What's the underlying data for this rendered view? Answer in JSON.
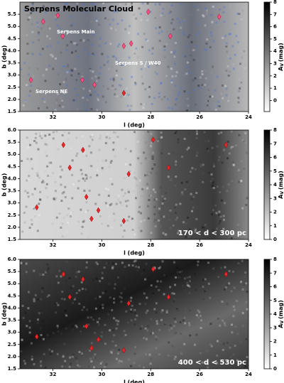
{
  "chart_data": [
    {
      "type": "scatter",
      "title": "Serpens Molecular Cloud",
      "annotations": [
        "Serpens Main",
        "Serpens S / W40",
        "Serpens NE"
      ],
      "x_label": "l (deg)",
      "y_label": "b (deg)",
      "xlim": [
        33.35,
        24
      ],
      "xticks": [
        32,
        30,
        28,
        26,
        24
      ],
      "ylim": [
        1.5,
        6.0
      ],
      "yticks": [
        1.5,
        {
          "value": 2,
          "label": "2.0"
        },
        2.5,
        {
          "value": 3,
          "label": "3.0"
        },
        3.5,
        {
          "value": 4,
          "label": "4.0"
        },
        4.5,
        {
          "value": 5,
          "label": "5.0"
        },
        5.5
      ],
      "colorbar": {
        "symbol": "A",
        "subscript": "V",
        "unit": "(mag)",
        "lim": [
          -0.9,
          8
        ],
        "ticks": [
          0,
          1,
          2,
          3,
          4,
          5,
          6,
          7,
          8
        ]
      },
      "series": [
        {
          "color": "#ff4f8b",
          "x": [
            32.4,
            31.8,
            31.6,
            29.1,
            28.8,
            28.1,
            27.2,
            25.2,
            30.8,
            30.3,
            32.9
          ],
          "values": [
            5.2,
            5.45,
            4.6,
            4.2,
            4.3,
            5.6,
            4.6,
            5.4,
            2.8,
            2.6,
            2.8
          ]
        },
        {
          "color": "#e8262a",
          "x": [
            29.1
          ],
          "values": [
            2.26
          ]
        }
      ]
    },
    {
      "type": "scatter",
      "annotation": "170 < d < 300 pc",
      "x_label": "l (deg)",
      "y_label": "b (deg)",
      "xlim": [
        33.35,
        24
      ],
      "xticks": [
        32,
        30,
        28,
        26,
        24
      ],
      "ylim": [
        1.5,
        6.0
      ],
      "yticks": [
        1.5,
        {
          "value": 2,
          "label": "2.0"
        },
        2.5,
        {
          "value": 3,
          "label": "3.0"
        },
        3.5,
        {
          "value": 4,
          "label": "4.0"
        },
        4.5,
        {
          "value": 5,
          "label": "5.0"
        },
        5.5,
        {
          "value": 6,
          "label": "6.0"
        }
      ],
      "colorbar": {
        "symbol": "A",
        "subscript": "V",
        "unit": "(mag)",
        "lim": [
          0,
          8
        ],
        "ticks": [
          0,
          1,
          2,
          3,
          4,
          5,
          6,
          7,
          8
        ]
      },
      "series": [
        {
          "color": "#e8262a",
          "x": [
            31.57,
            30.77,
            31.31,
            28.9,
            27.9,
            27.27,
            24.92,
            30.63,
            30.14,
            30.42,
            32.66,
            29.1
          ],
          "values": [
            5.39,
            5.18,
            4.45,
            4.19,
            5.6,
            4.45,
            5.39,
            3.25,
            2.7,
            2.35,
            2.82,
            2.26
          ]
        }
      ]
    },
    {
      "type": "scatter",
      "annotation": "400 < d < 530 pc",
      "x_label": "l (deg)",
      "y_label": "b (deg)",
      "xlim": [
        33.35,
        24
      ],
      "xticks": [
        32,
        30,
        28,
        26,
        24
      ],
      "ylim": [
        1.5,
        6.0
      ],
      "yticks": [
        1.5,
        {
          "value": 2,
          "label": "2.0"
        },
        2.5,
        {
          "value": 3,
          "label": "3.0"
        },
        3.5,
        {
          "value": 4,
          "label": "4.0"
        },
        4.5,
        {
          "value": 5,
          "label": "5.0"
        },
        5.5,
        {
          "value": 6,
          "label": "6.0"
        }
      ],
      "colorbar": {
        "symbol": "A",
        "subscript": "V",
        "unit": "(mag)",
        "lim": [
          0,
          8
        ],
        "ticks": [
          0,
          1,
          2,
          3,
          4,
          5,
          6,
          7,
          8
        ]
      },
      "series": [
        {
          "color": "#e8262a",
          "x": [
            31.57,
            30.77,
            31.31,
            28.9,
            27.9,
            27.27,
            24.92,
            30.63,
            30.14,
            30.42,
            32.66,
            29.1
          ],
          "values": [
            5.39,
            5.18,
            4.45,
            4.19,
            5.6,
            4.45,
            5.39,
            3.25,
            2.7,
            2.35,
            2.82,
            2.26
          ]
        }
      ]
    }
  ]
}
